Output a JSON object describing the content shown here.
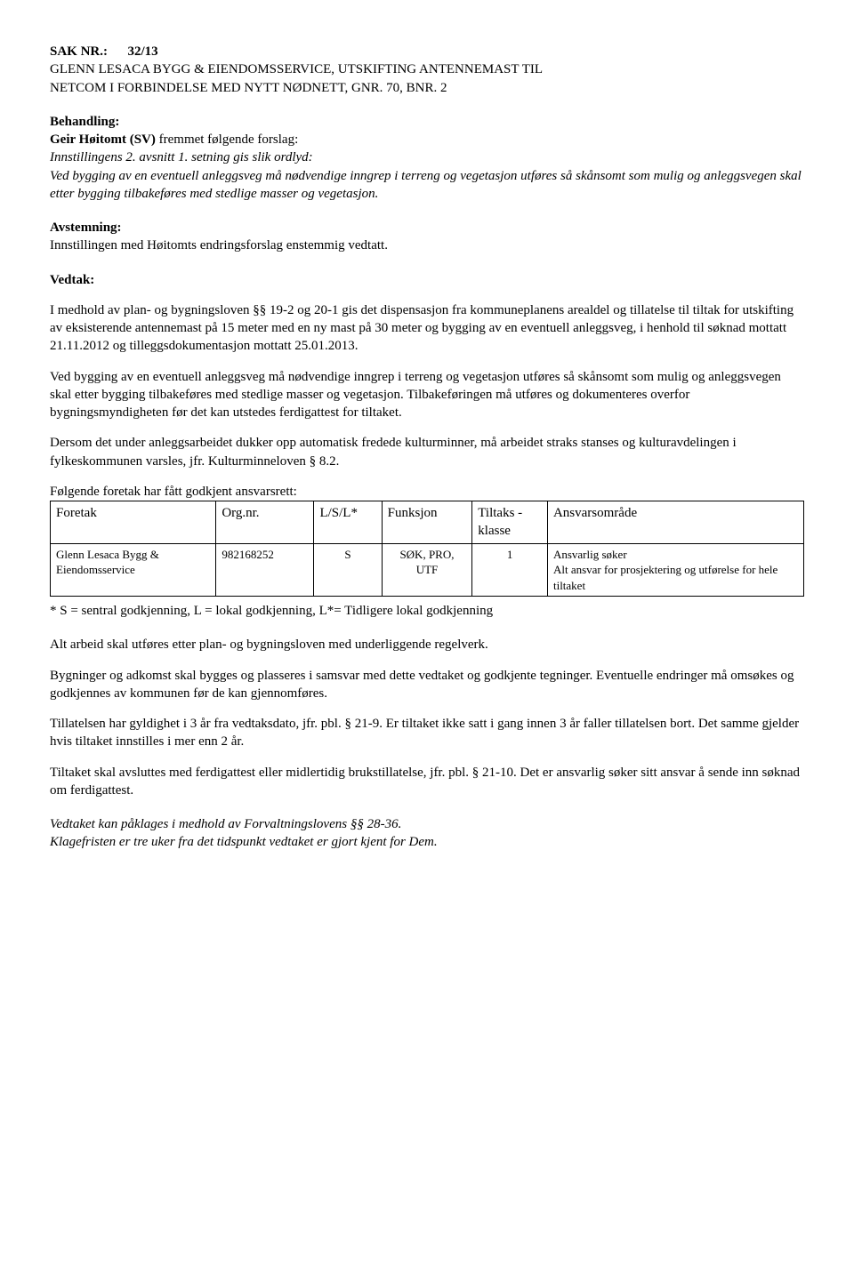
{
  "header": {
    "sak_label": "SAK NR.:",
    "sak_value": "32/13",
    "title_line1": "GLENN LESACA BYGG & EIENDOMSSERVICE, UTSKIFTING ANTENNEMAST TIL",
    "title_line2": "NETCOM I FORBINDELSE MED NYTT NØDNETT, GNR. 70, BNR. 2"
  },
  "behandling": {
    "heading": "Behandling:",
    "line1_bold": "Geir Høitomt (SV)",
    "line1_rest": " fremmet følgende forslag:",
    "italic_block": "Innstillingens 2. avsnitt 1. setning gis slik ordlyd:\nVed bygging av en eventuell anleggsveg må nødvendige inngrep i terreng og vegetasjon utføres så skånsomt som mulig og anleggsvegen skal etter bygging tilbakeføres med stedlige masser og vegetasjon."
  },
  "avstemning": {
    "heading": "Avstemning:",
    "text": "Innstillingen med Høitomts endringsforslag enstemmig vedtatt."
  },
  "vedtak": {
    "heading": "Vedtak:",
    "p1": "I medhold av plan- og bygningsloven §§ 19-2 og 20-1 gis det dispensasjon fra kommuneplanens arealdel og tillatelse til tiltak for utskifting av eksisterende antennemast på 15 meter med en ny mast på 30 meter og bygging av en eventuell anleggsveg, i henhold til søknad mottatt 21.11.2012 og tilleggsdokumentasjon mottatt 25.01.2013.",
    "p2": "Ved bygging av en eventuell anleggsveg må nødvendige inngrep i terreng og vegetasjon utføres så skånsomt som mulig og anleggsvegen skal etter bygging tilbakeføres med stedlige masser og vegetasjon. Tilbakeføringen må utføres og dokumenteres overfor bygningsmyndigheten før det kan utstedes ferdigattest for tiltaket.",
    "p3": "Dersom det under anleggsarbeidet dukker opp automatisk fredede kulturminner, må arbeidet straks stanses og kulturavdelingen i fylkeskommunen varsles, jfr. Kulturminneloven § 8.2."
  },
  "ansvarsrett": {
    "intro": "Følgende foretak har fått godkjent ansvarsrett:",
    "columns": [
      "Foretak",
      "Org.nr.",
      "L/S/L*",
      "Funksjon",
      "Tiltaks - klasse",
      "Ansvarsområde"
    ],
    "col_widths": [
      "22%",
      "13%",
      "9%",
      "12%",
      "10%",
      "34%"
    ],
    "row": {
      "foretak": "Glenn Lesaca Bygg & Eiendomsservice",
      "orgnr": "982168252",
      "lsl": "S",
      "funksjon": "SØK, PRO, UTF",
      "klasse": "1",
      "omrade": "Ansvarlig søker\nAlt ansvar for prosjektering og utførelse for hele tiltaket"
    },
    "footnote": "* S = sentral godkjenning, L = lokal godkjenning, L*= Tidligere lokal godkjenning"
  },
  "tail": {
    "p1": "Alt arbeid skal utføres etter plan- og bygningsloven med underliggende regelverk.",
    "p2": "Bygninger og adkomst skal bygges og plasseres i samsvar med dette vedtaket og godkjente tegninger. Eventuelle endringer må omsøkes og godkjennes av kommunen før de kan gjennomføres.",
    "p3": "Tillatelsen har gyldighet i 3 år fra vedtaksdato, jfr. pbl. § 21-9. Er tiltaket ikke satt i gang innen 3 år faller tillatelsen bort. Det samme gjelder hvis tiltaket innstilles i mer enn 2 år.",
    "p4": "Tiltaket skal avsluttes med ferdigattest eller midlertidig brukstillatelse, jfr. pbl. § 21-10. Det er ansvarlig søker sitt ansvar å sende inn søknad om ferdigattest.",
    "italic_p1": "Vedtaket kan påklages i medhold av Forvaltningslovens §§ 28-36.",
    "italic_p2": "Klagefristen er tre uker fra det tidspunkt vedtaket er gjort kjent for Dem."
  }
}
